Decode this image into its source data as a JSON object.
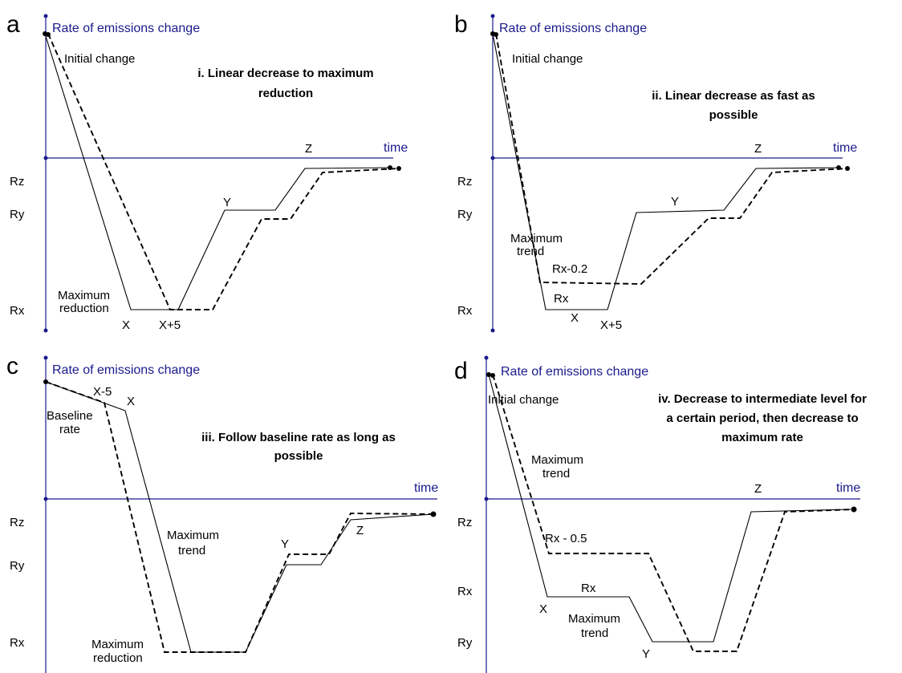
{
  "axis": {
    "y_label": "Rate of emissions change",
    "x_label": "time"
  },
  "panels": {
    "a": {
      "letter": "a",
      "title_lines": [
        "i. Linear decrease to maximum",
        "reduction"
      ],
      "labels": {
        "initial_change": "Initial change",
        "z": "Z",
        "y": "Y",
        "max_reduction_1": "Maximum",
        "max_reduction_2": "reduction",
        "x": "X",
        "x_plus_5": "X+5",
        "rz": "Rz",
        "ry": "Ry",
        "rx": "Rx"
      }
    },
    "b": {
      "letter": "b",
      "title_lines": [
        "ii. Linear decrease as fast as",
        "possible"
      ],
      "labels": {
        "initial_change": "Initial change",
        "z": "Z",
        "y": "Y",
        "max_trend_1": "Maximum",
        "max_trend_2": "trend",
        "rx_minus_02": "Rx-0.2",
        "rx_inner": "Rx",
        "x": "X",
        "x_plus_5": "X+5",
        "rz": "Rz",
        "ry": "Ry",
        "rx": "Rx"
      }
    },
    "c": {
      "letter": "c",
      "title_lines": [
        "iii. Follow baseline rate as long as",
        "possible"
      ],
      "labels": {
        "x_minus_5": "X-5",
        "x": "X",
        "baseline_1": "Baseline",
        "baseline_2": "rate",
        "max_trend_1": "Maximum",
        "max_trend_2": "trend",
        "y": "Y",
        "z": "Z",
        "max_reduction_1": "Maximum",
        "max_reduction_2": "reduction",
        "rz": "Rz",
        "ry": "Ry",
        "rx": "Rx"
      }
    },
    "d": {
      "letter": "d",
      "title_lines": [
        "iv. Decrease to intermediate level for",
        "a certain period, then decrease to",
        "maximum rate"
      ],
      "labels": {
        "initial_change": "Initial change",
        "max_trend_top_1": "Maximum",
        "max_trend_top_2": "trend",
        "z": "Z",
        "rx_minus_05": "Rx - 0.5",
        "rx_inner": "Rx",
        "x": "X",
        "max_trend_bottom_1": "Maximum",
        "max_trend_bottom_2": "trend",
        "y": "Y",
        "rz": "Rz",
        "rx": "Rx",
        "ry": "Ry"
      }
    }
  }
}
